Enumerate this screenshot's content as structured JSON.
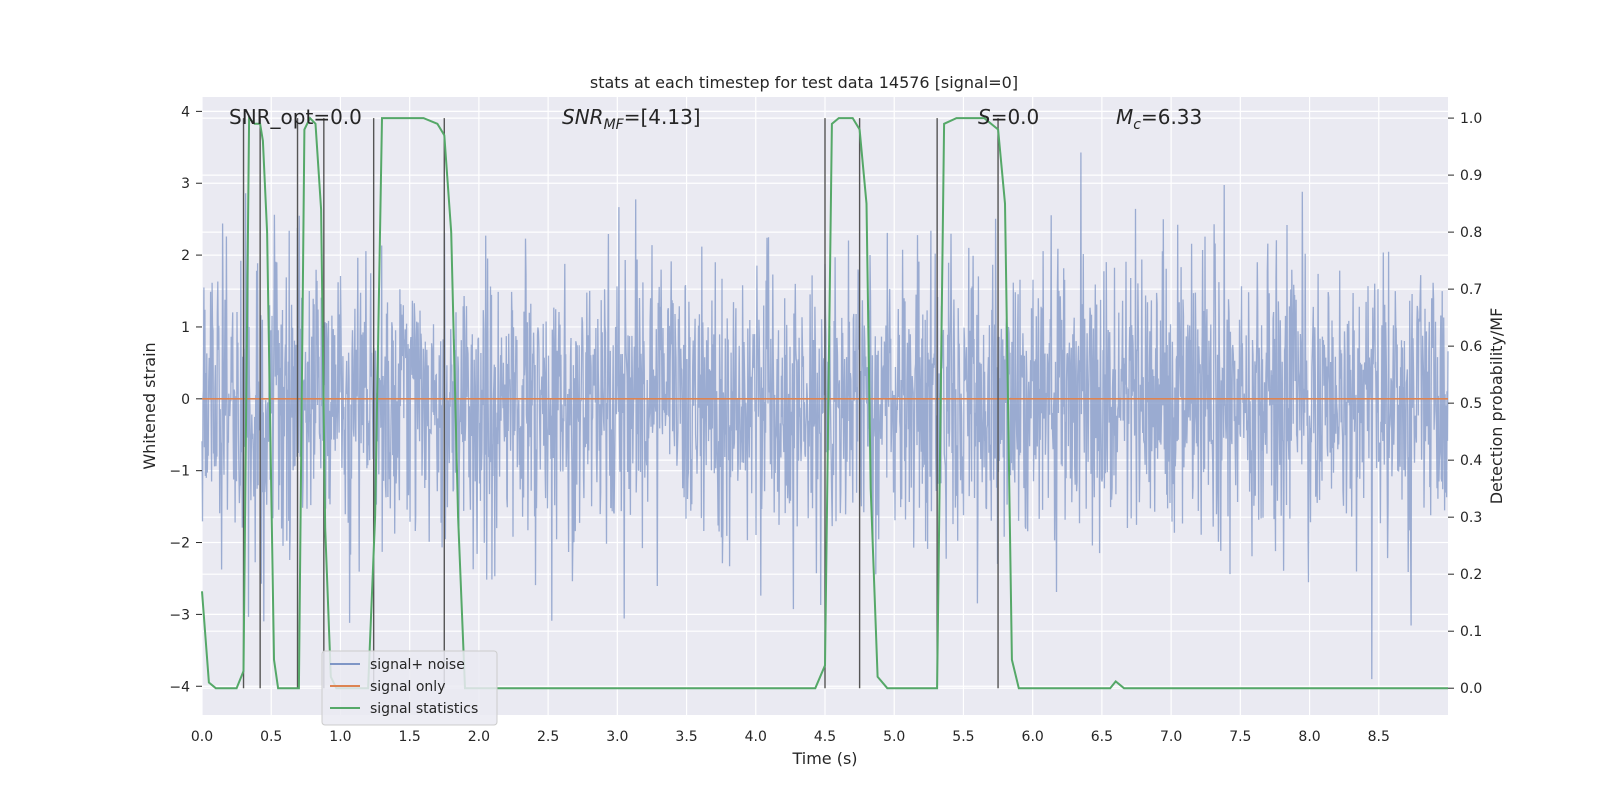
{
  "chart_data": {
    "type": "line",
    "title": "stats at each timestep for test data 14576 [signal=0]",
    "xlabel": "Time (s)",
    "ylabel": "Whitened strain",
    "ylabel_right": "Detection probability/MF",
    "xlim": [
      0.0,
      9.0
    ],
    "ylim": [
      -4.4,
      4.2
    ],
    "ylim_right": [
      -0.047,
      1.037
    ],
    "x_ticks": [
      "0.0",
      "0.5",
      "1.0",
      "1.5",
      "2.0",
      "2.5",
      "3.0",
      "3.5",
      "4.0",
      "4.5",
      "5.0",
      "5.5",
      "6.0",
      "6.5",
      "7.0",
      "7.5",
      "8.0",
      "8.5"
    ],
    "y_ticks_left": [
      "4",
      "3",
      "2",
      "1",
      "0",
      "−1",
      "−2",
      "−3",
      "−4"
    ],
    "y_ticks_right": [
      "1.0",
      "0.9",
      "0.8",
      "0.7",
      "0.6",
      "0.5",
      "0.4",
      "0.3",
      "0.2",
      "0.1",
      "0.0"
    ],
    "annotations": {
      "snr_opt": "SNR_opt=0.0",
      "snr_mf_main": "SNR",
      "snr_mf_sub": "MF",
      "snr_mf_value": "=[4.13]",
      "s_main": "S",
      "s_value": "=0.0",
      "mc_main": "M",
      "mc_sub": "c",
      "mc_value": "=6.33"
    },
    "legend": {
      "placement": "lower-left",
      "entries": [
        "signal+ noise",
        "signal only",
        "signal statistics"
      ]
    },
    "colors": {
      "noise": "#7f96c6",
      "signal": "#dd8452",
      "stat": "#55a868",
      "vline": "#555555",
      "background": "#eaeaf2",
      "grid": "#ffffff"
    },
    "series": [
      {
        "name": "signal+ noise",
        "axis": "left",
        "noise_profile": {
          "x_start": 0.0,
          "x_end": 9.0,
          "envelope_pos": 2.0,
          "envelope_neg": -2.0,
          "peak_max": 3.7,
          "trough_min": -3.9
        }
      },
      {
        "name": "signal only",
        "axis": "left",
        "x": [
          0.0,
          9.0
        ],
        "y": [
          0.0,
          0.0
        ]
      },
      {
        "name": "signal statistics",
        "axis": "right",
        "x": [
          0.0,
          0.05,
          0.1,
          0.2,
          0.25,
          0.3,
          0.34,
          0.38,
          0.42,
          0.44,
          0.47,
          0.52,
          0.55,
          0.6,
          0.65,
          0.7,
          0.74,
          0.78,
          0.82,
          0.86,
          0.89,
          0.93,
          0.97,
          1.0,
          1.05,
          1.1,
          1.15,
          1.2,
          1.25,
          1.3,
          1.4,
          1.5,
          1.6,
          1.7,
          1.75,
          1.8,
          1.85,
          1.9,
          2.0,
          2.5,
          3.0,
          3.5,
          4.0,
          4.43,
          4.5,
          4.55,
          4.6,
          4.7,
          4.75,
          4.8,
          4.83,
          4.88,
          4.95,
          5.0,
          5.1,
          5.2,
          5.31,
          5.36,
          5.45,
          5.55,
          5.65,
          5.75,
          5.8,
          5.85,
          5.9,
          6.0,
          6.5,
          6.56,
          6.6,
          6.66,
          6.72,
          6.8,
          7.0,
          7.5,
          8.0,
          8.5,
          9.0
        ],
        "y": [
          0.17,
          0.01,
          0.0,
          0.0,
          0.0,
          0.03,
          1.0,
          0.99,
          0.99,
          0.96,
          0.8,
          0.05,
          0.0,
          0.0,
          0.0,
          0.0,
          0.98,
          1.0,
          0.99,
          0.84,
          0.28,
          0.02,
          0.0,
          0.0,
          0.0,
          0.0,
          0.0,
          0.0,
          0.3,
          1.0,
          1.0,
          1.0,
          1.0,
          0.99,
          0.97,
          0.8,
          0.3,
          0.0,
          0.0,
          0.0,
          0.0,
          0.0,
          0.0,
          0.0,
          0.04,
          0.99,
          1.0,
          1.0,
          0.98,
          0.85,
          0.35,
          0.02,
          0.0,
          0.0,
          0.0,
          0.0,
          0.0,
          0.99,
          1.0,
          1.0,
          1.0,
          0.98,
          0.85,
          0.05,
          0.0,
          0.0,
          0.0,
          0.0,
          0.012,
          0.0,
          0.0,
          0.0,
          0.0,
          0.0,
          0.0,
          0.0,
          0.0
        ]
      }
    ],
    "vlines": [
      0.3,
      0.42,
      0.69,
      0.88,
      1.24,
      1.75,
      4.5,
      4.75,
      5.31,
      5.75
    ]
  }
}
